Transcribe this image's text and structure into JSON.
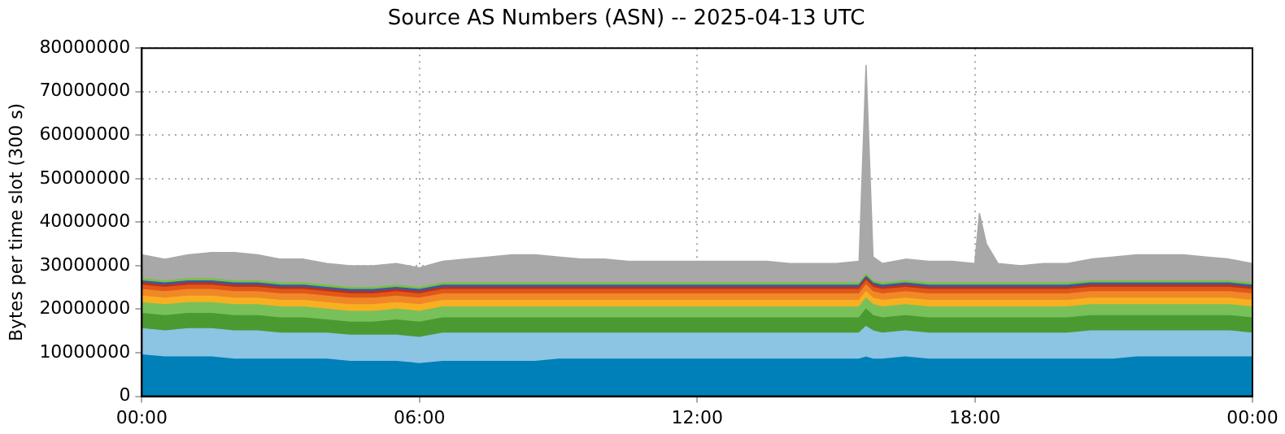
{
  "chart_data": {
    "type": "area",
    "stacked": true,
    "title": "Source AS Numbers (ASN) -- 2025-04-13 UTC",
    "ylabel": "Bytes per time slot (300 s)",
    "x": [
      0,
      0.5,
      1,
      1.5,
      2,
      2.5,
      3,
      3.5,
      4,
      4.5,
      5,
      5.5,
      6,
      6.5,
      7,
      7.5,
      8,
      8.5,
      9,
      9.5,
      10,
      10.5,
      11,
      11.5,
      12,
      12.5,
      13,
      13.5,
      14,
      14.5,
      15,
      15.5,
      15.65,
      15.8,
      16,
      16.5,
      17,
      17.5,
      18,
      18.1,
      18.25,
      18.5,
      19,
      19.5,
      20,
      20.5,
      21,
      21.5,
      22,
      22.5,
      23,
      23.5,
      24
    ],
    "xlim": [
      0,
      24
    ],
    "xticks": [
      {
        "value": 0,
        "label": "00:00"
      },
      {
        "value": 6,
        "label": "06:00"
      },
      {
        "value": 12,
        "label": "12:00"
      },
      {
        "value": 18,
        "label": "18:00"
      },
      {
        "value": 24,
        "label": "00:00"
      }
    ],
    "ylim": [
      0,
      80000000
    ],
    "yticks": [
      0,
      10000000,
      20000000,
      30000000,
      40000000,
      50000000,
      60000000,
      70000000,
      80000000
    ],
    "grid": true,
    "legend": false,
    "series": [
      {
        "color": "#0080b8",
        "values": [
          9500000,
          9000000,
          9000000,
          9000000,
          8500000,
          8500000,
          8500000,
          8500000,
          8500000,
          8000000,
          8000000,
          8000000,
          7500000,
          8000000,
          8000000,
          8000000,
          8000000,
          8000000,
          8500000,
          8500000,
          8500000,
          8500000,
          8500000,
          8500000,
          8500000,
          8500000,
          8500000,
          8500000,
          8500000,
          8500000,
          8500000,
          8500000,
          9000000,
          8500000,
          8500000,
          9000000,
          8500000,
          8500000,
          8500000,
          8500000,
          8500000,
          8500000,
          8500000,
          8500000,
          8500000,
          8500000,
          8500000,
          9000000,
          9000000,
          9000000,
          9000000,
          9000000,
          9000000
        ]
      },
      {
        "color": "#8cc4e4",
        "values": [
          6000000,
          6000000,
          6500000,
          6500000,
          6500000,
          6500000,
          6000000,
          6000000,
          6000000,
          6000000,
          6000000,
          6000000,
          6000000,
          6500000,
          6500000,
          6500000,
          6500000,
          6500000,
          6000000,
          6000000,
          6000000,
          6000000,
          6000000,
          6000000,
          6000000,
          6000000,
          6000000,
          6000000,
          6000000,
          6000000,
          6000000,
          6000000,
          7000000,
          6500000,
          6000000,
          6000000,
          6000000,
          6000000,
          6000000,
          6000000,
          6000000,
          6000000,
          6000000,
          6000000,
          6000000,
          6500000,
          6500000,
          6000000,
          6000000,
          6000000,
          6000000,
          6000000,
          5500000
        ]
      },
      {
        "color": "#4a9a32",
        "values": [
          3500000,
          3500000,
          3500000,
          3500000,
          3500000,
          3500000,
          3500000,
          3500000,
          3000000,
          3000000,
          3000000,
          3500000,
          3500000,
          3500000,
          3500000,
          3500000,
          3500000,
          3500000,
          3500000,
          3500000,
          3500000,
          3500000,
          3500000,
          3500000,
          3500000,
          3500000,
          3500000,
          3500000,
          3500000,
          3500000,
          3500000,
          3500000,
          4000000,
          3500000,
          3500000,
          3500000,
          3500000,
          3500000,
          3500000,
          3500000,
          3500000,
          3500000,
          3500000,
          3500000,
          3500000,
          3500000,
          3500000,
          3500000,
          3500000,
          3500000,
          3500000,
          3500000,
          3500000
        ]
      },
      {
        "color": "#78c05a",
        "values": [
          2500000,
          2500000,
          2500000,
          2500000,
          2500000,
          2500000,
          2500000,
          2500000,
          2500000,
          2500000,
          2500000,
          2500000,
          2500000,
          2500000,
          2500000,
          2500000,
          2500000,
          2500000,
          2500000,
          2500000,
          2500000,
          2500000,
          2500000,
          2500000,
          2500000,
          2500000,
          2500000,
          2500000,
          2500000,
          2500000,
          2500000,
          2500000,
          2500000,
          2500000,
          2500000,
          2500000,
          2500000,
          2500000,
          2500000,
          2500000,
          2500000,
          2500000,
          2500000,
          2500000,
          2500000,
          2500000,
          2500000,
          2500000,
          2500000,
          2500000,
          2500000,
          2500000,
          2500000
        ]
      },
      {
        "color": "#f8b020",
        "values": [
          1500000,
          1500000,
          1500000,
          1500000,
          1500000,
          1500000,
          1500000,
          1500000,
          1500000,
          1500000,
          1500000,
          1500000,
          1500000,
          1500000,
          1500000,
          1500000,
          1500000,
          1500000,
          1500000,
          1500000,
          1500000,
          1500000,
          1500000,
          1500000,
          1500000,
          1500000,
          1500000,
          1500000,
          1500000,
          1500000,
          1500000,
          1500000,
          1500000,
          1500000,
          1500000,
          1500000,
          1500000,
          1500000,
          1500000,
          1500000,
          1500000,
          1500000,
          1500000,
          1500000,
          1500000,
          1500000,
          1500000,
          1500000,
          1500000,
          1500000,
          1500000,
          1500000,
          1500000
        ]
      },
      {
        "color": "#f08828",
        "values": [
          1500000,
          1500000,
          1500000,
          1500000,
          1500000,
          1500000,
          1500000,
          1500000,
          1500000,
          1500000,
          1500000,
          1500000,
          1500000,
          1500000,
          1500000,
          1500000,
          1500000,
          1500000,
          1500000,
          1500000,
          1500000,
          1500000,
          1500000,
          1500000,
          1500000,
          1500000,
          1500000,
          1500000,
          1500000,
          1500000,
          1500000,
          1500000,
          1500000,
          1500000,
          1500000,
          1500000,
          1500000,
          1500000,
          1500000,
          1500000,
          1500000,
          1500000,
          1500000,
          1500000,
          1500000,
          1500000,
          1500000,
          1500000,
          1500000,
          1500000,
          1500000,
          1500000,
          1500000
        ]
      },
      {
        "color": "#e05818",
        "values": [
          1000000,
          1000000,
          1000000,
          1000000,
          1000000,
          1000000,
          1000000,
          1000000,
          1000000,
          1000000,
          1000000,
          1000000,
          1000000,
          1000000,
          1000000,
          1000000,
          1000000,
          1000000,
          1000000,
          1000000,
          1000000,
          1000000,
          1000000,
          1000000,
          1000000,
          1000000,
          1000000,
          1000000,
          1000000,
          1000000,
          1000000,
          1000000,
          1000000,
          1000000,
          1000000,
          1000000,
          1000000,
          1000000,
          1000000,
          1000000,
          1000000,
          1000000,
          1000000,
          1000000,
          1000000,
          1000000,
          1000000,
          1000000,
          1000000,
          1000000,
          1000000,
          1000000,
          1000000
        ]
      },
      {
        "color": "#c03018",
        "values": [
          500000,
          500000,
          500000,
          500000,
          500000,
          500000,
          500000,
          500000,
          500000,
          500000,
          500000,
          500000,
          500000,
          500000,
          500000,
          500000,
          500000,
          500000,
          500000,
          500000,
          500000,
          500000,
          500000,
          500000,
          500000,
          500000,
          500000,
          500000,
          500000,
          500000,
          500000,
          500000,
          500000,
          500000,
          500000,
          500000,
          500000,
          500000,
          500000,
          500000,
          500000,
          500000,
          500000,
          500000,
          500000,
          500000,
          500000,
          500000,
          500000,
          500000,
          500000,
          500000,
          500000
        ]
      },
      {
        "color": "#3858a8",
        "values": [
          500000,
          500000,
          500000,
          500000,
          500000,
          500000,
          500000,
          500000,
          500000,
          500000,
          500000,
          500000,
          500000,
          500000,
          500000,
          500000,
          500000,
          500000,
          500000,
          500000,
          500000,
          500000,
          500000,
          500000,
          500000,
          500000,
          500000,
          500000,
          500000,
          500000,
          500000,
          500000,
          500000,
          500000,
          500000,
          500000,
          500000,
          500000,
          500000,
          500000,
          500000,
          500000,
          500000,
          500000,
          500000,
          500000,
          500000,
          500000,
          500000,
          500000,
          500000,
          500000,
          500000
        ]
      },
      {
        "color": "#78c040",
        "values": [
          500000,
          500000,
          500000,
          500000,
          500000,
          500000,
          500000,
          500000,
          500000,
          500000,
          500000,
          500000,
          500000,
          500000,
          500000,
          500000,
          500000,
          500000,
          500000,
          500000,
          500000,
          500000,
          500000,
          500000,
          500000,
          500000,
          500000,
          500000,
          500000,
          500000,
          500000,
          500000,
          500000,
          500000,
          500000,
          500000,
          500000,
          500000,
          500000,
          500000,
          500000,
          500000,
          500000,
          500000,
          500000,
          500000,
          500000,
          500000,
          500000,
          500000,
          500000,
          500000,
          500000
        ]
      },
      {
        "color": "#a8a8a8",
        "values": [
          5500000,
          5000000,
          5500000,
          6000000,
          6500000,
          6000000,
          5500000,
          5500000,
          5000000,
          5000000,
          5000000,
          5000000,
          4500000,
          5000000,
          5500000,
          6000000,
          6500000,
          6500000,
          6000000,
          5500000,
          5500000,
          5000000,
          5000000,
          5000000,
          5000000,
          5000000,
          5000000,
          5000000,
          4500000,
          4500000,
          4500000,
          5000000,
          48000000,
          5500000,
          4500000,
          5000000,
          5000000,
          5000000,
          4500000,
          16000000,
          9000000,
          4500000,
          4000000,
          4500000,
          4500000,
          5000000,
          5500000,
          6000000,
          6000000,
          6000000,
          5500000,
          5000000,
          4500000
        ]
      }
    ]
  }
}
